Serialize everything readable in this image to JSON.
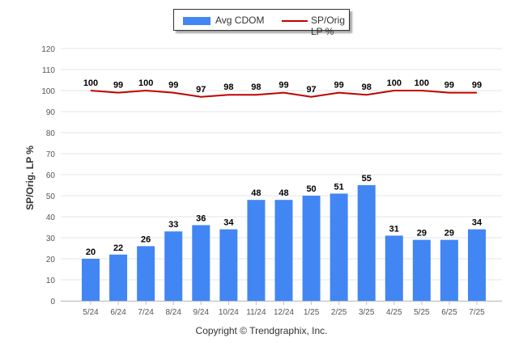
{
  "legend": {
    "bar_label": "Avg CDOM",
    "line_label": "SP/Orig LP %"
  },
  "footer": "Copyright © Trendgraphix, Inc.",
  "colors": {
    "bar": "#4286f4",
    "line": "#c00000",
    "grid": "#e6e6e6"
  },
  "chart_data": {
    "type": "bar",
    "title": "",
    "xlabel": "",
    "ylabel": "SP/Orig. LP %",
    "ylim": [
      0,
      120
    ],
    "yticks": [
      0,
      10,
      20,
      30,
      40,
      50,
      60,
      70,
      80,
      90,
      100,
      110,
      120
    ],
    "grid": true,
    "legend_position": "top-center",
    "categories": [
      "5/24",
      "6/24",
      "7/24",
      "8/24",
      "9/24",
      "10/24",
      "11/24",
      "12/24",
      "1/25",
      "2/25",
      "3/25",
      "4/25",
      "5/25",
      "6/25",
      "7/25"
    ],
    "series": [
      {
        "name": "Avg CDOM",
        "type": "bar",
        "values": [
          20,
          22,
          26,
          33,
          36,
          34,
          48,
          48,
          50,
          51,
          55,
          31,
          29,
          29,
          34
        ]
      },
      {
        "name": "SP/Orig LP %",
        "type": "line",
        "values": [
          100,
          99,
          100,
          99,
          97,
          98,
          98,
          99,
          97,
          99,
          98,
          100,
          100,
          99,
          99
        ]
      }
    ]
  }
}
